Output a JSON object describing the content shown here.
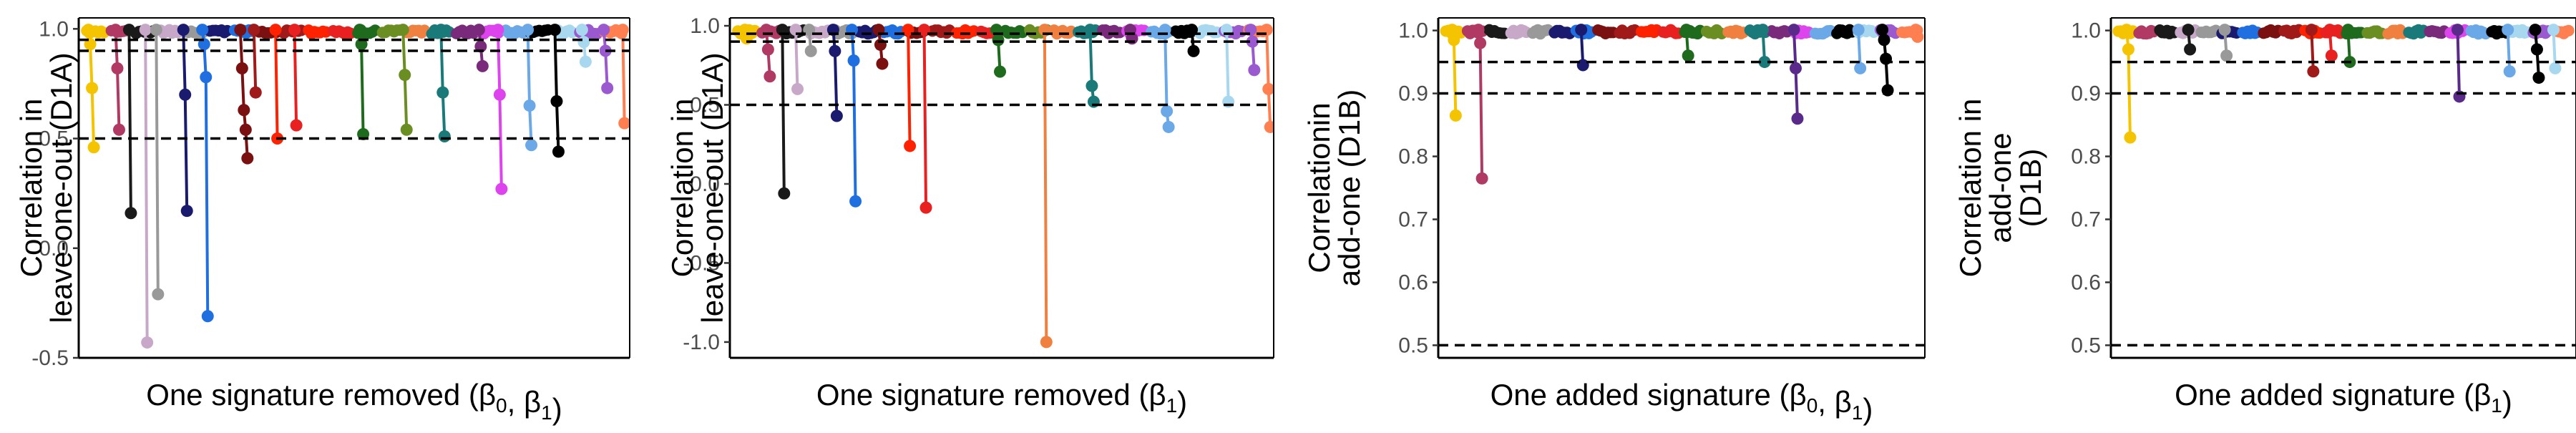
{
  "chart_data": [
    {
      "type": "scatter",
      "xlabel_main": "One signature removed (",
      "xlabel_sym": "β",
      "xlabel_parts": [
        {
          "t": "One signature removed (",
          "sub": false
        },
        {
          "t": "β",
          "sub": false
        },
        {
          "t": "0",
          "sub": true
        },
        {
          "t": ", ",
          "sub": false
        },
        {
          "t": "β",
          "sub": false
        },
        {
          "t": "1",
          "sub": true
        },
        {
          "t": ")",
          "sub": false
        }
      ],
      "ylabel_lines": [
        "Correlation in",
        "leave-one-out (D1A)"
      ],
      "ylim": [
        -0.5,
        1.05
      ],
      "yticks": [
        -0.5,
        0.0,
        0.5,
        1.0
      ],
      "ytick_labels": [
        "-0.5",
        "0.0",
        "0.5",
        "1.0"
      ],
      "hlines": [
        0.5,
        0.9,
        0.95
      ],
      "drops": [
        {
          "color": "#f5c400",
          "mins": [
            0.93,
            0.73,
            0.46
          ],
          "frac": 0.01
        },
        {
          "color": "#b03a64",
          "mins": [
            0.82,
            0.54
          ],
          "frac": 0.06
        },
        {
          "color": "#1a1a1a",
          "mins": [
            0.16
          ],
          "frac": 0.085
        },
        {
          "color": "#c8a8c8",
          "mins": [
            -0.43
          ],
          "frac": 0.115
        },
        {
          "color": "#999999",
          "mins": [
            -0.21
          ],
          "frac": 0.135
        },
        {
          "color": "#1a1a6e",
          "mins": [
            0.7,
            0.17
          ],
          "frac": 0.185
        },
        {
          "color": "#1f6fe0",
          "mins": [
            0.93,
            0.78,
            -0.31
          ],
          "frac": 0.22
        },
        {
          "color": "#7a1010",
          "mins": [
            0.82,
            0.63,
            0.54,
            0.41
          ],
          "frac": 0.29
        },
        {
          "color": "#a01a1a",
          "mins": [
            0.71
          ],
          "frac": 0.315
        },
        {
          "color": "#ff2200",
          "mins": [
            0.5
          ],
          "frac": 0.355
        },
        {
          "color": "#e82020",
          "mins": [
            0.56
          ],
          "frac": 0.39
        },
        {
          "color": "#1e6b1e",
          "mins": [
            0.93,
            0.52
          ],
          "frac": 0.51
        },
        {
          "color": "#6b8e23",
          "mins": [
            0.79,
            0.54
          ],
          "frac": 0.59
        },
        {
          "color": "#1a7a7a",
          "mins": [
            0.71,
            0.51
          ],
          "frac": 0.66
        },
        {
          "color": "#7a2a7a",
          "mins": [
            0.92,
            0.83
          ],
          "frac": 0.73
        },
        {
          "color": "#dd44ee",
          "mins": [
            0.7,
            0.27
          ],
          "frac": 0.765
        },
        {
          "color": "#6aa8e8",
          "mins": [
            0.65,
            0.47
          ],
          "frac": 0.82
        },
        {
          "color": "#000000",
          "mins": [
            0.67,
            0.44
          ],
          "frac": 0.87
        },
        {
          "color": "#a8d8f0",
          "mins": [
            0.94,
            0.85
          ],
          "frac": 0.92
        },
        {
          "color": "#9b59d0",
          "mins": [
            0.9,
            0.73
          ],
          "frac": 0.96
        },
        {
          "color": "#ff7f50",
          "mins": [
            0.57
          ],
          "frac": 0.995
        }
      ]
    },
    {
      "type": "scatter",
      "xlabel_parts": [
        {
          "t": "One signature removed (",
          "sub": false
        },
        {
          "t": "β",
          "sub": false
        },
        {
          "t": "1",
          "sub": true
        },
        {
          "t": ")",
          "sub": false
        }
      ],
      "ylabel_lines": [
        "Correlation in",
        "leave-one-out (D1A)"
      ],
      "ylim": [
        -1.1,
        1.05
      ],
      "yticks": [
        -1.0,
        -0.5,
        0.0,
        0.5,
        1.0
      ],
      "ytick_labels": [
        "-1.0",
        "-0.5",
        "0.0",
        "0.5",
        "1.0"
      ],
      "hlines": [
        0.5,
        0.9,
        0.95
      ],
      "drops": [
        {
          "color": "#f5c400",
          "mins": [
            0.92
          ],
          "frac": 0.02
        },
        {
          "color": "#b03a64",
          "mins": [
            0.85,
            0.68
          ],
          "frac": 0.06
        },
        {
          "color": "#1a1a1a",
          "mins": [
            -0.06
          ],
          "frac": 0.09
        },
        {
          "color": "#c8a8c8",
          "mins": [
            0.6
          ],
          "frac": 0.115
        },
        {
          "color": "#999999",
          "mins": [
            0.84
          ],
          "frac": 0.14
        },
        {
          "color": "#1a1a6e",
          "mins": [
            0.84,
            0.43
          ],
          "frac": 0.185
        },
        {
          "color": "#1f6fe0",
          "mins": [
            0.78,
            -0.11
          ],
          "frac": 0.22
        },
        {
          "color": "#7a1010",
          "mins": [
            0.88,
            0.76
          ],
          "frac": 0.27
        },
        {
          "color": "#ff2200",
          "mins": [
            0.24
          ],
          "frac": 0.325
        },
        {
          "color": "#e82020",
          "mins": [
            -0.15
          ],
          "frac": 0.355
        },
        {
          "color": "#1e6b1e",
          "mins": [
            0.91,
            0.71
          ],
          "frac": 0.49
        },
        {
          "color": "#f08040",
          "mins": [
            -1.0
          ],
          "frac": 0.58
        },
        {
          "color": "#1a7a7a",
          "mins": [
            0.62,
            0.52
          ],
          "frac": 0.665
        },
        {
          "color": "#7a2a7a",
          "mins": [
            0.92
          ],
          "frac": 0.74
        },
        {
          "color": "#6aa8e8",
          "mins": [
            0.46,
            0.36
          ],
          "frac": 0.805
        },
        {
          "color": "#000000",
          "mins": [
            0.84
          ],
          "frac": 0.855
        },
        {
          "color": "#a8d8f0",
          "mins": [
            0.52
          ],
          "frac": 0.92
        },
        {
          "color": "#9b59d0",
          "mins": [
            0.9,
            0.72
          ],
          "frac": 0.965
        },
        {
          "color": "#ff7f50",
          "mins": [
            0.6,
            0.36
          ],
          "frac": 0.995
        }
      ]
    },
    {
      "type": "scatter",
      "xlabel_parts": [
        {
          "t": "One added signature (",
          "sub": false
        },
        {
          "t": "β",
          "sub": false
        },
        {
          "t": "0",
          "sub": true
        },
        {
          "t": ", ",
          "sub": false
        },
        {
          "t": "β",
          "sub": false
        },
        {
          "t": "1",
          "sub": true
        },
        {
          "t": ")",
          "sub": false
        }
      ],
      "ylabel_lines": [
        "Correlationin",
        "add-one (D1B)"
      ],
      "ylim": [
        0.48,
        1.02
      ],
      "yticks": [
        0.5,
        0.6,
        0.7,
        0.8,
        0.9,
        1.0
      ],
      "ytick_labels": [
        "0.5",
        "0.6",
        "0.7",
        "0.8",
        "0.9",
        "1.0"
      ],
      "hlines": [
        0.5,
        0.9,
        0.95
      ],
      "drops": [
        {
          "color": "#f5c400",
          "mins": [
            0.985,
            0.865
          ],
          "frac": 0.02
        },
        {
          "color": "#b03a64",
          "mins": [
            0.98,
            0.765
          ],
          "frac": 0.075
        },
        {
          "color": "#1a1a6e",
          "mins": [
            0.945
          ],
          "frac": 0.29
        },
        {
          "color": "#1e6b1e",
          "mins": [
            0.96
          ],
          "frac": 0.51
        },
        {
          "color": "#1a7a7a",
          "mins": [
            0.95
          ],
          "frac": 0.67
        },
        {
          "color": "#5a2a8a",
          "mins": [
            0.94,
            0.86
          ],
          "frac": 0.735
        },
        {
          "color": "#6aa8e8",
          "mins": [
            0.94
          ],
          "frac": 0.87
        },
        {
          "color": "#000000",
          "mins": [
            0.985,
            0.955,
            0.905
          ],
          "frac": 0.92
        },
        {
          "color": "#ff7f50",
          "mins": [
            0.99
          ],
          "frac": 0.99
        }
      ]
    },
    {
      "type": "scatter",
      "xlabel_parts": [
        {
          "t": "One added signature (",
          "sub": false
        },
        {
          "t": "β",
          "sub": false
        },
        {
          "t": "1",
          "sub": true
        },
        {
          "t": ")",
          "sub": false
        }
      ],
      "ylabel_lines": [
        "Correlation in",
        "add-one",
        "(D1B)"
      ],
      "ylim": [
        0.48,
        1.02
      ],
      "yticks": [
        0.5,
        0.6,
        0.7,
        0.8,
        0.9,
        1.0
      ],
      "ytick_labels": [
        "0.5",
        "0.6",
        "0.7",
        "0.8",
        "0.9",
        "1.0"
      ],
      "hlines": [
        0.5,
        0.9,
        0.95
      ],
      "drops": [
        {
          "color": "#f5c400",
          "mins": [
            0.97,
            0.83
          ],
          "frac": 0.025
        },
        {
          "color": "#1a1a1a",
          "mins": [
            0.97
          ],
          "frac": 0.16
        },
        {
          "color": "#999999",
          "mins": [
            0.96
          ],
          "frac": 0.24
        },
        {
          "color": "#a01a1a",
          "mins": [
            0.935
          ],
          "frac": 0.43
        },
        {
          "color": "#e82020",
          "mins": [
            0.96
          ],
          "frac": 0.47
        },
        {
          "color": "#1e6b1e",
          "mins": [
            0.95
          ],
          "frac": 0.51
        },
        {
          "color": "#5a2a8a",
          "mins": [
            0.895
          ],
          "frac": 0.75
        },
        {
          "color": "#6aa8e8",
          "mins": [
            0.935
          ],
          "frac": 0.86
        },
        {
          "color": "#000000",
          "mins": [
            0.97,
            0.925
          ],
          "frac": 0.92
        },
        {
          "color": "#a8d8f0",
          "mins": [
            0.94
          ],
          "frac": 0.96
        }
      ]
    }
  ],
  "palette": [
    "#f5c400",
    "#b03a64",
    "#1a1a1a",
    "#c8a8c8",
    "#999999",
    "#1a1a6e",
    "#1f6fe0",
    "#7a1010",
    "#a01a1a",
    "#ff2200",
    "#e82020",
    "#1e6b1e",
    "#6b8e23",
    "#f08040",
    "#1a7a7a",
    "#7a2a7a",
    "#dd44ee",
    "#6aa8e8",
    "#000000",
    "#a8d8f0",
    "#9b59d0",
    "#ff7f50"
  ],
  "cluster_count": 22
}
